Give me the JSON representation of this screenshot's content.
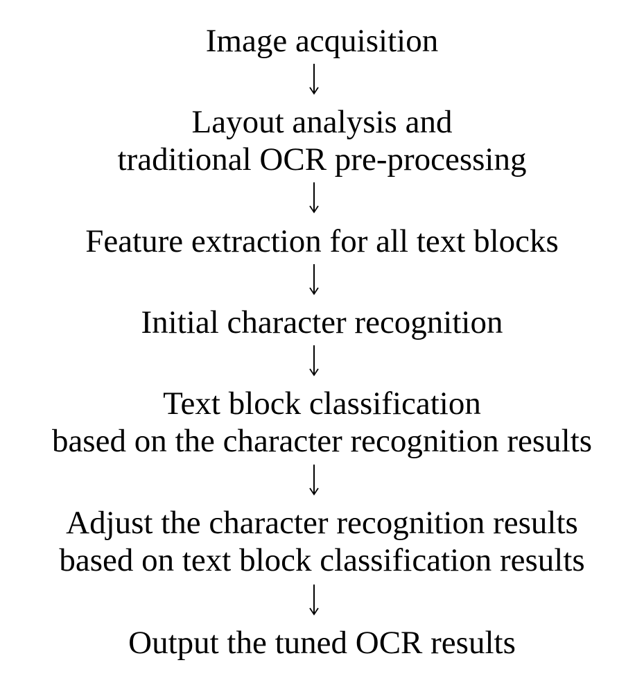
{
  "steps": [
    {
      "lines": [
        "Image acquisition"
      ]
    },
    {
      "lines": [
        "Layout analysis and",
        "traditional OCR pre-processing"
      ]
    },
    {
      "lines": [
        "Feature extraction for all text blocks"
      ]
    },
    {
      "lines": [
        "Initial character recognition"
      ]
    },
    {
      "lines": [
        "Text block classification",
        "based on the character recognition results"
      ]
    },
    {
      "lines": [
        "Adjust the character recognition results",
        "based on text block classification results"
      ]
    },
    {
      "lines": [
        "Output the tuned OCR results"
      ]
    }
  ],
  "arrow_icon": "down-arrow-icon",
  "colors": {
    "text": "#000000",
    "background": "#ffffff"
  }
}
